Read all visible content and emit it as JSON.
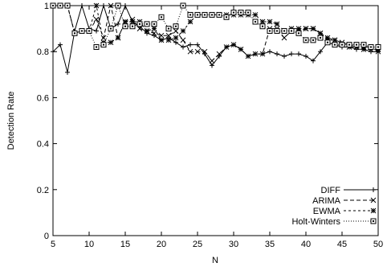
{
  "chart_data": {
    "type": "line",
    "title": "",
    "xlabel": "N",
    "ylabel": "Detection Rate",
    "xlim": [
      5,
      50
    ],
    "ylim": [
      0,
      1
    ],
    "x_ticks": [
      "5",
      "10",
      "15",
      "20",
      "25",
      "30",
      "35",
      "40",
      "45",
      "50"
    ],
    "y_ticks": [
      "0",
      "0.2",
      "0.4",
      "0.6",
      "0.8",
      "1"
    ],
    "grid": false,
    "legend_position": "bottom-right",
    "x": [
      5,
      6,
      7,
      8,
      9,
      10,
      11,
      12,
      13,
      14,
      15,
      16,
      17,
      18,
      19,
      20,
      21,
      22,
      23,
      24,
      25,
      26,
      27,
      28,
      29,
      30,
      31,
      32,
      33,
      34,
      35,
      36,
      37,
      38,
      39,
      40,
      41,
      42,
      43,
      44,
      45,
      46,
      47,
      48,
      49,
      50
    ],
    "series": [
      {
        "name": "DIFF",
        "marker": "plus",
        "values": [
          0.8,
          0.83,
          0.71,
          0.89,
          1.0,
          0.9,
          0.89,
          1.0,
          0.9,
          0.92,
          1.0,
          0.93,
          0.91,
          0.88,
          0.87,
          0.85,
          0.86,
          0.84,
          0.82,
          0.83,
          0.83,
          0.79,
          0.74,
          0.78,
          0.82,
          0.83,
          0.81,
          0.78,
          0.79,
          0.79,
          0.8,
          0.79,
          0.78,
          0.79,
          0.79,
          0.78,
          0.76,
          0.8,
          0.84,
          0.83,
          0.82,
          0.82,
          0.81,
          0.81,
          0.8,
          0.8
        ]
      },
      {
        "name": "ARIMA",
        "marker": "x",
        "values": [
          1.0,
          1.0,
          1.0,
          0.88,
          0.89,
          0.89,
          0.94,
          0.86,
          1.0,
          0.86,
          0.93,
          0.94,
          0.9,
          0.89,
          0.88,
          0.87,
          0.87,
          0.89,
          0.85,
          0.8,
          0.8,
          0.8,
          0.76,
          0.79,
          0.82,
          0.83,
          0.81,
          0.78,
          0.79,
          0.79,
          0.9,
          0.9,
          0.86,
          0.89,
          0.89,
          0.9,
          0.9,
          0.88,
          0.85,
          0.85,
          0.84,
          0.83,
          0.82,
          0.81,
          0.81,
          0.81
        ]
      },
      {
        "name": "EWMA",
        "marker": "star",
        "values": [
          1.0,
          1.0,
          1.0,
          0.88,
          0.89,
          0.89,
          1.0,
          0.84,
          0.84,
          0.86,
          0.93,
          0.93,
          0.93,
          0.89,
          0.9,
          0.85,
          0.85,
          0.86,
          0.89,
          0.93,
          0.96,
          0.96,
          0.96,
          0.96,
          0.96,
          0.96,
          0.96,
          0.96,
          0.96,
          0.93,
          0.93,
          0.92,
          0.89,
          0.9,
          0.9,
          0.9,
          0.9,
          0.88,
          0.86,
          0.85,
          0.83,
          0.82,
          0.82,
          0.82,
          0.82,
          0.8
        ]
      },
      {
        "name": "Holt-Winters",
        "marker": "square",
        "values": [
          1.0,
          1.0,
          1.0,
          0.88,
          0.89,
          0.89,
          0.82,
          0.83,
          0.9,
          1.0,
          0.91,
          0.91,
          0.92,
          0.92,
          0.92,
          0.95,
          0.9,
          0.91,
          1.0,
          0.96,
          0.96,
          0.96,
          0.96,
          0.96,
          0.95,
          0.97,
          0.97,
          0.97,
          0.93,
          0.91,
          0.89,
          0.89,
          0.89,
          0.89,
          0.88,
          0.85,
          0.85,
          0.86,
          0.84,
          0.83,
          0.83,
          0.83,
          0.83,
          0.83,
          0.82,
          0.82
        ]
      }
    ]
  }
}
